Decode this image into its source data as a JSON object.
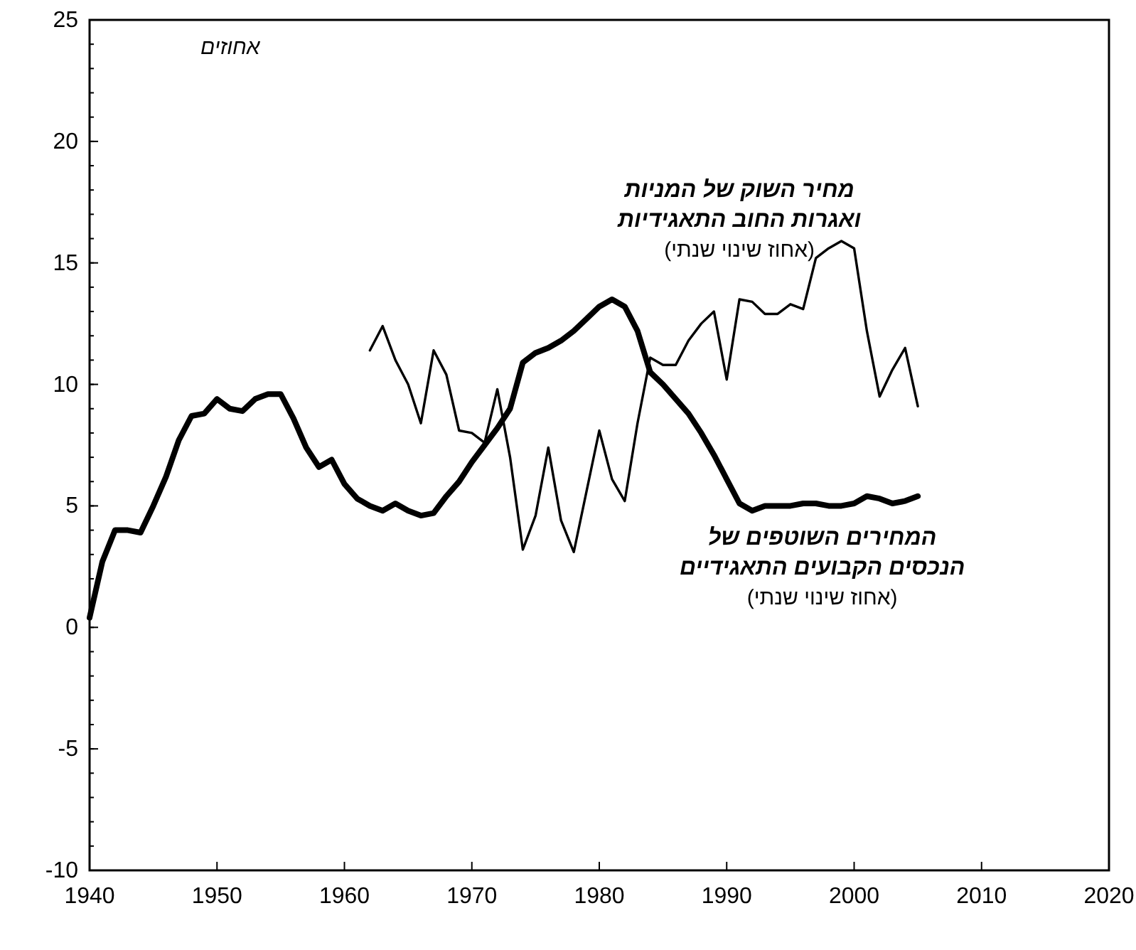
{
  "chart_data": {
    "type": "line",
    "ylabel": "אחוזים",
    "xlim": [
      1940,
      2020
    ],
    "xticks": [
      1940,
      1950,
      1960,
      1970,
      1980,
      1990,
      2000,
      2010,
      2020
    ],
    "ylim": [
      -10,
      25
    ],
    "yticks": [
      -10,
      -5,
      0,
      5,
      10,
      15,
      20,
      25
    ],
    "grid": false,
    "legend": false,
    "marker": "none",
    "line_style": "solid",
    "annotations": [
      "(אחוז שינוי שנתי)",
      "(אחוז שינוי שנתי)"
    ],
    "series": [
      {
        "name": "מחיר השוק של המניות ואגרות החוב התאגידיות",
        "color": "#000000",
        "x": [
          1962,
          1963,
          1964,
          1965,
          1966,
          1967,
          1968,
          1969,
          1970,
          1971,
          1972,
          1973,
          1974,
          1975,
          1976,
          1977,
          1978,
          1979,
          1980,
          1981,
          1982,
          1983,
          1984,
          1985,
          1986,
          1987,
          1988,
          1989,
          1990,
          1991,
          1992,
          1993,
          1994,
          1995,
          1996,
          1997,
          1998,
          1999,
          2000,
          2001,
          2002,
          2003,
          2004,
          2005
        ],
        "values": [
          11.4,
          12.4,
          11.0,
          10.0,
          8.4,
          11.4,
          10.4,
          8.1,
          8.0,
          7.6,
          9.8,
          7.0,
          3.2,
          4.6,
          7.4,
          4.4,
          3.1,
          5.6,
          8.1,
          6.1,
          5.2,
          8.4,
          11.1,
          10.8,
          10.8,
          11.8,
          12.5,
          13.0,
          10.2,
          13.5,
          13.4,
          12.9,
          12.9,
          13.3,
          13.1,
          15.2,
          15.6,
          15.9,
          15.6,
          12.2,
          9.5,
          10.6,
          11.5,
          9.1
        ]
      },
      {
        "name": "המחירים השוטפים של הנכסים הקבועים התאגידיים",
        "color": "#000000",
        "x": [
          1940,
          1941,
          1942,
          1943,
          1944,
          1945,
          1946,
          1947,
          1948,
          1949,
          1950,
          1951,
          1952,
          1953,
          1954,
          1955,
          1956,
          1957,
          1958,
          1959,
          1960,
          1961,
          1962,
          1963,
          1964,
          1965,
          1966,
          1967,
          1968,
          1969,
          1970,
          1971,
          1972,
          1973,
          1974,
          1975,
          1976,
          1977,
          1978,
          1979,
          1980,
          1981,
          1982,
          1983,
          1984,
          1985,
          1986,
          1987,
          1988,
          1989,
          1990,
          1991,
          1992,
          1993,
          1994,
          1995,
          1996,
          1997,
          1998,
          1999,
          2000,
          2001,
          2002,
          2003,
          2004,
          2005
        ],
        "values": [
          0.4,
          2.7,
          4.0,
          4.0,
          3.9,
          5.0,
          6.2,
          7.7,
          8.7,
          8.8,
          9.4,
          9.0,
          8.9,
          9.4,
          9.6,
          9.6,
          8.6,
          7.4,
          6.6,
          6.9,
          5.9,
          5.3,
          5.0,
          4.8,
          5.1,
          4.8,
          4.6,
          4.7,
          5.4,
          6.0,
          6.8,
          7.5,
          8.2,
          9.0,
          10.9,
          11.3,
          11.5,
          11.8,
          12.2,
          12.7,
          13.2,
          13.5,
          13.2,
          12.2,
          10.5,
          10.0,
          9.4,
          8.8,
          8.0,
          7.1,
          6.1,
          5.1,
          4.8,
          5.0,
          5.0,
          5.0,
          5.1,
          5.1,
          5.0,
          5.0,
          5.1,
          5.4,
          5.3,
          5.1,
          5.2,
          5.4
        ]
      }
    ]
  }
}
